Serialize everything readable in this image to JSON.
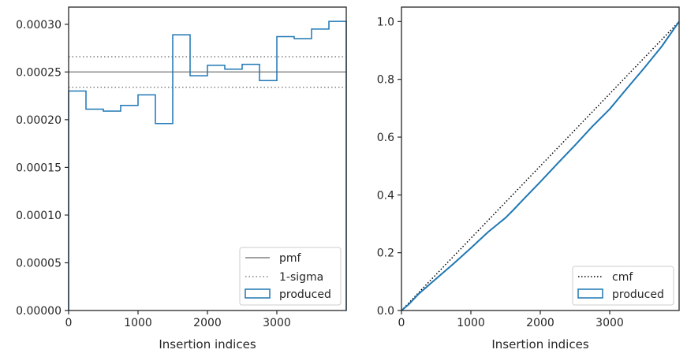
{
  "colors": {
    "produced": "#1f77b4",
    "pmf": "#808080",
    "sigma": "#808080",
    "cmf": "#000000",
    "spine": "#262626"
  },
  "chart_data": [
    {
      "type": "step",
      "xlabel": "Insertion indices",
      "ylabel": "",
      "xlim": [
        0,
        4000
      ],
      "ylim": [
        0,
        0.000318
      ],
      "xticks": [
        0,
        1000,
        2000,
        3000
      ],
      "xtick_labels": [
        "0",
        "1000",
        "2000",
        "3000"
      ],
      "yticks": [
        0,
        5e-05,
        0.0001,
        0.00015,
        0.0002,
        0.00025,
        0.0003
      ],
      "ytick_labels": [
        "0.00000",
        "0.00005",
        "0.00010",
        "0.00015",
        "0.00020",
        "0.00025",
        "0.00030"
      ],
      "bin_edges": [
        0,
        250,
        500,
        750,
        1000,
        1250,
        1500,
        1750,
        2000,
        2250,
        2500,
        2750,
        3000,
        3250,
        3500,
        3750,
        4000
      ],
      "series": [
        {
          "name": "produced",
          "style": "step-histogram",
          "values": [
            0.00023,
            0.000211,
            0.000209,
            0.000215,
            0.000226,
            0.000196,
            0.000289,
            0.000246,
            0.000257,
            0.000253,
            0.000258,
            0.000241,
            0.000287,
            0.000285,
            0.000295,
            0.000303
          ]
        },
        {
          "name": "pmf",
          "style": "hline",
          "value": 0.00025
        },
        {
          "name": "1-sigma",
          "style": "hline-dotted",
          "values": [
            0.000266,
            0.000234
          ]
        }
      ],
      "legend": {
        "position": "bottom-right",
        "entries": [
          "pmf",
          "1-sigma",
          "produced"
        ]
      }
    },
    {
      "type": "line",
      "xlabel": "Insertion indices",
      "ylabel": "",
      "xlim": [
        0,
        4000
      ],
      "ylim": [
        0,
        1.05
      ],
      "xticks": [
        0,
        1000,
        2000,
        3000
      ],
      "xtick_labels": [
        "0",
        "1000",
        "2000",
        "3000"
      ],
      "yticks": [
        0,
        0.2,
        0.4,
        0.6,
        0.8,
        1.0
      ],
      "ytick_labels": [
        "0.0",
        "0.2",
        "0.4",
        "0.6",
        "0.8",
        "1.0"
      ],
      "series": [
        {
          "name": "cmf",
          "style": "dotted",
          "x": [
            0,
            4000
          ],
          "y": [
            0,
            1.0
          ]
        },
        {
          "name": "produced",
          "style": "solid",
          "x": [
            0,
            100,
            250,
            500,
            750,
            1000,
            1250,
            1500,
            1600,
            1750,
            2000,
            2250,
            2500,
            2750,
            3000,
            3250,
            3500,
            3750,
            4000
          ],
          "y": [
            0,
            0.02,
            0.058,
            0.11,
            0.162,
            0.216,
            0.272,
            0.321,
            0.345,
            0.383,
            0.445,
            0.509,
            0.572,
            0.637,
            0.697,
            0.769,
            0.84,
            0.914,
            1.0
          ]
        }
      ],
      "legend": {
        "position": "bottom-right",
        "entries": [
          "cmf",
          "produced"
        ]
      }
    }
  ]
}
